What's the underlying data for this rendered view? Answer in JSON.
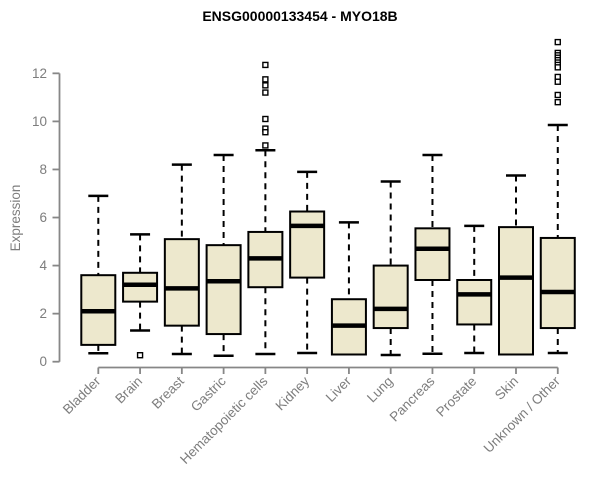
{
  "chart_data": {
    "type": "boxplot",
    "title": "ENSG00000133454 - MYO18B",
    "ylabel": "Expression",
    "xlabel": "",
    "ylim": [
      0,
      13.5
    ],
    "yticks": [
      0,
      2,
      4,
      6,
      8,
      10,
      12
    ],
    "grid": false,
    "x_label_rotation_deg": 45,
    "categories": [
      "Bladder",
      "Brain",
      "Breast",
      "Gastric",
      "Hematopoietic cells",
      "Kidney",
      "Liver",
      "Lung",
      "Pancreas",
      "Prostate",
      "Skin",
      "Unknown / Other"
    ],
    "series": [
      {
        "name": "Bladder",
        "low": 0.35,
        "q1": 0.7,
        "median": 2.1,
        "q3": 3.6,
        "high": 6.9,
        "outliers": []
      },
      {
        "name": "Brain",
        "low": 1.3,
        "q1": 2.5,
        "median": 3.2,
        "q3": 3.7,
        "high": 5.3,
        "outliers": [
          0.27
        ]
      },
      {
        "name": "Breast",
        "low": 0.32,
        "q1": 1.5,
        "median": 3.05,
        "q3": 5.1,
        "high": 8.2,
        "outliers": []
      },
      {
        "name": "Gastric",
        "low": 0.25,
        "q1": 1.15,
        "median": 3.35,
        "q3": 4.85,
        "high": 8.6,
        "outliers": []
      },
      {
        "name": "Hematopoietic cells",
        "low": 0.32,
        "q1": 3.1,
        "median": 4.3,
        "q3": 5.4,
        "high": 8.8,
        "outliers": [
          12.35,
          11.75,
          11.5,
          11.2,
          10.1,
          9.7,
          9.55,
          9.0
        ]
      },
      {
        "name": "Kidney",
        "low": 0.36,
        "q1": 3.5,
        "median": 5.65,
        "q3": 6.25,
        "high": 7.9,
        "outliers": []
      },
      {
        "name": "Liver",
        "low": 0.3,
        "q1": 0.3,
        "median": 1.5,
        "q3": 2.6,
        "high": 5.8,
        "outliers": []
      },
      {
        "name": "Lung",
        "low": 0.28,
        "q1": 1.4,
        "median": 2.2,
        "q3": 4.0,
        "high": 7.5,
        "outliers": []
      },
      {
        "name": "Pancreas",
        "low": 0.33,
        "q1": 3.4,
        "median": 4.7,
        "q3": 5.55,
        "high": 8.6,
        "outliers": []
      },
      {
        "name": "Prostate",
        "low": 0.36,
        "q1": 1.55,
        "median": 2.8,
        "q3": 3.4,
        "high": 5.65,
        "outliers": []
      },
      {
        "name": "Skin",
        "low": 0.3,
        "q1": 0.3,
        "median": 3.5,
        "q3": 5.6,
        "high": 7.75,
        "outliers": []
      },
      {
        "name": "Unknown / Other",
        "low": 0.36,
        "q1": 1.4,
        "median": 2.9,
        "q3": 5.15,
        "high": 9.85,
        "outliers": [
          13.3,
          12.85,
          12.75,
          12.65,
          12.55,
          12.45,
          12.35,
          12.25,
          11.85,
          11.65,
          11.1,
          10.8
        ]
      }
    ],
    "style": {
      "box_fill": "#EDE8CD",
      "box_border": "#000000",
      "median_color": "#000000",
      "whisker_color": "#000000",
      "axis_color": "#878787",
      "tick_label_color": "#7d7d7d",
      "title_color": "#000000",
      "outlier_marker": "open-square",
      "background": "#ffffff"
    }
  }
}
